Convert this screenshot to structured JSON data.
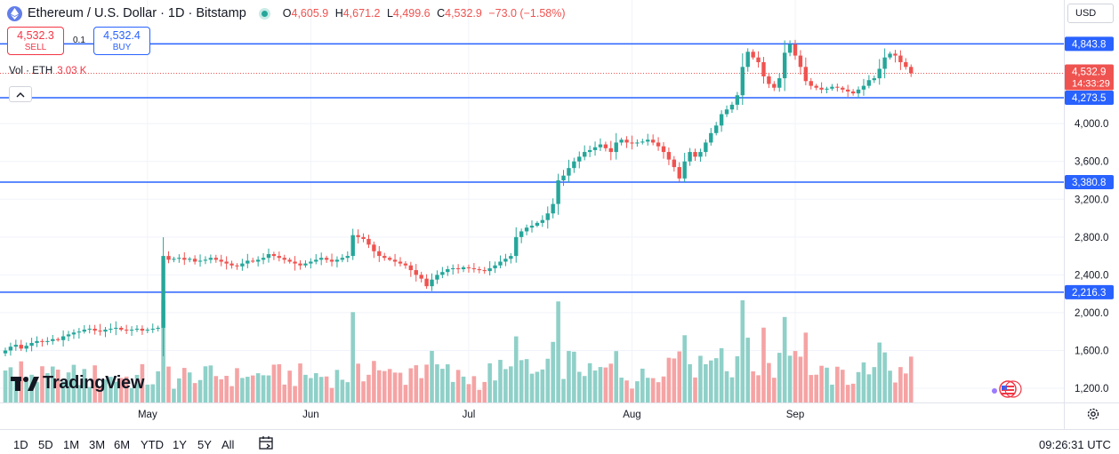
{
  "header": {
    "title": "Ethereum / U.S. Dollar · 1D · Bitstamp",
    "ohlc": [
      {
        "k": "O",
        "v": "4,605.9"
      },
      {
        "k": "H",
        "v": "4,671.2"
      },
      {
        "k": "L",
        "v": "4,499.6"
      },
      {
        "k": "C",
        "v": "4,532.9"
      }
    ],
    "change": "−73.0 (−1.58%)"
  },
  "trade": {
    "sell_price": "4,532.3",
    "sell_label": "SELL",
    "spread": "0.1",
    "buy_price": "4,532.4",
    "buy_label": "BUY"
  },
  "volume": {
    "label": "Vol · ETH",
    "value": "3.03 K"
  },
  "currency": "USD",
  "logo": "TradingView",
  "timeframes": [
    "1D",
    "5D",
    "1M",
    "3M",
    "6M",
    "YTD",
    "1Y",
    "5Y",
    "All"
  ],
  "clock": "09:26:31 UTC",
  "icons": {
    "symbol": "ethereum-icon",
    "live": "live-dot-icon",
    "collapse": "chevron-up-icon",
    "calendar": "calendar-range-icon",
    "settings": "gear-icon",
    "badge": "flag-badge-icon"
  },
  "colors": {
    "up": "#26a69a",
    "down": "#ef5350",
    "vol_up": "#8fd0c8",
    "vol_down": "#f5a3a4",
    "hline": "#2962ff"
  },
  "chart_data": {
    "type": "candlestick",
    "y_axis": {
      "range": [
        1050,
        5120
      ],
      "ticks": [
        1200,
        1600,
        2000,
        2400,
        2800,
        3200,
        3600,
        4000
      ]
    },
    "tick_labels": [
      "1,200.0",
      "1,600.0",
      "2,000.0",
      "2,400.0",
      "2,800.0",
      "3,200.0",
      "3,600.0",
      "4,000.0"
    ],
    "x_axis": {
      "labels": [
        {
          "t": "May",
          "i": 27
        },
        {
          "t": "Jun",
          "i": 58
        },
        {
          "t": "Jul",
          "i": 88
        },
        {
          "t": "Aug",
          "i": 119
        },
        {
          "t": "Sep",
          "i": 150
        }
      ]
    },
    "horizontal_levels": [
      {
        "value": 4843.8,
        "label": "4,843.8"
      },
      {
        "value": 4273.5,
        "label": "4,273.5"
      },
      {
        "value": 3380.8,
        "label": "3,380.8"
      },
      {
        "value": 2216.3,
        "label": "2,216.3"
      }
    ],
    "last_price": {
      "value": 4532.9,
      "label": "4,532.9",
      "countdown": "14:33:29"
    },
    "closes": [
      1600,
      1640,
      1660,
      1620,
      1650,
      1680,
      1700,
      1690,
      1700,
      1720,
      1710,
      1750,
      1770,
      1790,
      1800,
      1820,
      1830,
      1810,
      1800,
      1820,
      1830,
      1840,
      1820,
      1810,
      1820,
      1830,
      1810,
      1820,
      1830,
      1840,
      2600,
      2560,
      2570,
      2580,
      2560,
      2570,
      2540,
      2550,
      2560,
      2580,
      2560,
      2540,
      2520,
      2500,
      2490,
      2520,
      2550,
      2540,
      2560,
      2580,
      2620,
      2600,
      2580,
      2560,
      2540,
      2520,
      2500,
      2520,
      2540,
      2560,
      2580,
      2560,
      2540,
      2560,
      2580,
      2600,
      2820,
      2800,
      2780,
      2720,
      2650,
      2600,
      2580,
      2560,
      2540,
      2520,
      2500,
      2450,
      2400,
      2360,
      2280,
      2350,
      2400,
      2430,
      2460,
      2470,
      2460,
      2480,
      2470,
      2460,
      2450,
      2440,
      2470,
      2500,
      2540,
      2570,
      2600,
      2800,
      2860,
      2900,
      2920,
      2950,
      2980,
      3050,
      3150,
      3400,
      3450,
      3530,
      3600,
      3650,
      3700,
      3720,
      3750,
      3780,
      3740,
      3700,
      3800,
      3830,
      3800,
      3790,
      3800,
      3810,
      3830,
      3800,
      3760,
      3700,
      3620,
      3540,
      3420,
      3600,
      3700,
      3650,
      3700,
      3800,
      3900,
      3980,
      4100,
      4150,
      4200,
      4300,
      4600,
      4760,
      4700,
      4650,
      4500,
      4420,
      4380,
      4480,
      4750,
      4840,
      4720,
      4600,
      4450,
      4400,
      4380,
      4360,
      4370,
      4390,
      4380,
      4360,
      4340,
      4320,
      4360,
      4400,
      4460,
      4480,
      4580,
      4700,
      4740,
      4720,
      4650,
      4600,
      4532.9
    ]
  }
}
